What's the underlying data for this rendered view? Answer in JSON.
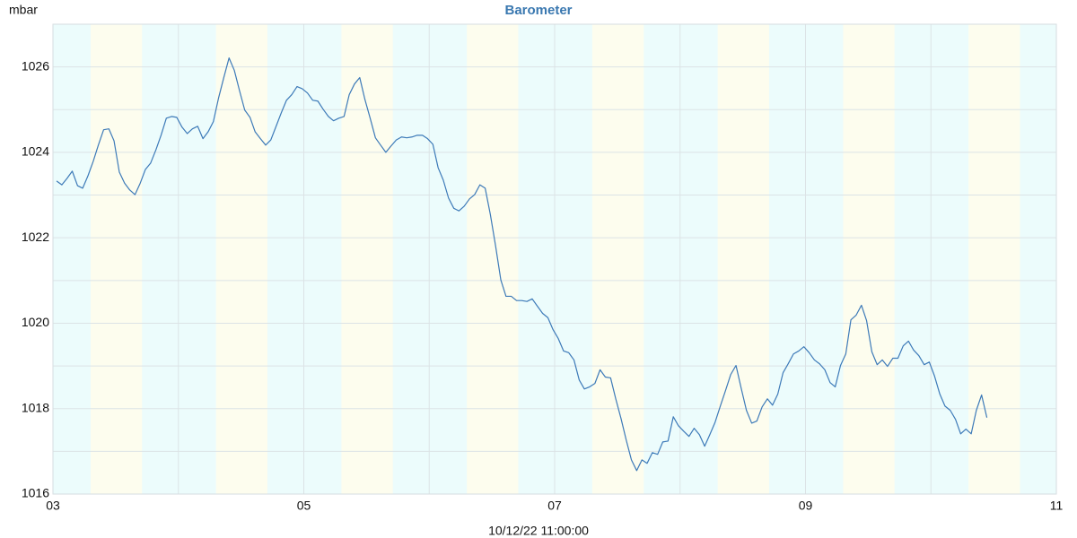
{
  "chart_data": {
    "type": "line",
    "title": "Barometer",
    "y_label": "mbar",
    "x_label": "10/12/22 11:00:00",
    "color": "#3d7ab8",
    "background": "#ecfcfc",
    "shading": {
      "color": "#fdfdee",
      "periods": [
        [
          3.3,
          3.71
        ],
        [
          4.3,
          4.71
        ],
        [
          5.3,
          5.71
        ],
        [
          6.3,
          6.71
        ],
        [
          7.3,
          7.71
        ],
        [
          8.3,
          8.71
        ],
        [
          9.3,
          9.71
        ],
        [
          10.3,
          10.71
        ]
      ]
    },
    "grid": true,
    "xlim": [
      3,
      11
    ],
    "ylim": [
      1016,
      1027
    ],
    "xticks": [
      {
        "value": 3,
        "label": "03"
      },
      {
        "value": 5,
        "label": "05"
      },
      {
        "value": 7,
        "label": "07"
      },
      {
        "value": 9,
        "label": "09"
      },
      {
        "value": 11,
        "label": "11"
      }
    ],
    "xminor": [
      4,
      6,
      8,
      10
    ],
    "yticks": [
      1016,
      1018,
      1020,
      1022,
      1024,
      1026
    ],
    "yminor": [
      1017,
      1019,
      1021,
      1023,
      1025
    ],
    "x": [
      3.029,
      3.071,
      3.112,
      3.154,
      3.196,
      3.237,
      3.279,
      3.321,
      3.362,
      3.404,
      3.446,
      3.487,
      3.529,
      3.571,
      3.612,
      3.654,
      3.696,
      3.737,
      3.779,
      3.821,
      3.862,
      3.904,
      3.946,
      3.987,
      4.029,
      4.071,
      4.112,
      4.154,
      4.196,
      4.237,
      4.279,
      4.321,
      4.362,
      4.404,
      4.446,
      4.487,
      4.529,
      4.571,
      4.612,
      4.654,
      4.696,
      4.737,
      4.779,
      4.821,
      4.862,
      4.904,
      4.946,
      4.987,
      5.029,
      5.071,
      5.112,
      5.154,
      5.196,
      5.237,
      5.279,
      5.321,
      5.362,
      5.404,
      5.446,
      5.487,
      5.529,
      5.571,
      5.612,
      5.654,
      5.696,
      5.737,
      5.779,
      5.821,
      5.862,
      5.904,
      5.946,
      5.987,
      6.029,
      6.071,
      6.112,
      6.154,
      6.196,
      6.237,
      6.279,
      6.321,
      6.362,
      6.404,
      6.446,
      6.487,
      6.529,
      6.571,
      6.612,
      6.654,
      6.696,
      6.737,
      6.779,
      6.821,
      6.862,
      6.904,
      6.946,
      6.987,
      7.029,
      7.071,
      7.112,
      7.154,
      7.196,
      7.237,
      7.279,
      7.321,
      7.362,
      7.404,
      7.446,
      7.487,
      7.529,
      7.571,
      7.612,
      7.654,
      7.696,
      7.737,
      7.779,
      7.821,
      7.862,
      7.904,
      7.946,
      7.987,
      8.029,
      8.071,
      8.112,
      8.154,
      8.196,
      8.237,
      8.279,
      8.321,
      8.362,
      8.404,
      8.446,
      8.487,
      8.529,
      8.571,
      8.612,
      8.654,
      8.696,
      8.737,
      8.779,
      8.821,
      8.862,
      8.904,
      8.946,
      8.987,
      9.029,
      9.071,
      9.112,
      9.154,
      9.196,
      9.237,
      9.279,
      9.321,
      9.362,
      9.404,
      9.446,
      9.487,
      9.529,
      9.571,
      9.612,
      9.654,
      9.696,
      9.737,
      9.779,
      9.821,
      9.862,
      9.904,
      9.946,
      9.987,
      10.029,
      10.071,
      10.112,
      10.154,
      10.196,
      10.237,
      10.279,
      10.321,
      10.362,
      10.404,
      10.446
    ],
    "values": [
      1023.33,
      1023.24,
      1023.39,
      1023.56,
      1023.22,
      1023.16,
      1023.45,
      1023.79,
      1024.17,
      1024.53,
      1024.55,
      1024.27,
      1023.54,
      1023.28,
      1023.12,
      1023.01,
      1023.28,
      1023.6,
      1023.75,
      1024.06,
      1024.4,
      1024.8,
      1024.84,
      1024.82,
      1024.59,
      1024.44,
      1024.55,
      1024.61,
      1024.32,
      1024.48,
      1024.72,
      1025.28,
      1025.75,
      1026.21,
      1025.92,
      1025.45,
      1024.99,
      1024.82,
      1024.48,
      1024.32,
      1024.17,
      1024.29,
      1024.61,
      1024.93,
      1025.22,
      1025.35,
      1025.54,
      1025.49,
      1025.39,
      1025.22,
      1025.2,
      1025.01,
      1024.84,
      1024.74,
      1024.8,
      1024.84,
      1025.35,
      1025.6,
      1025.75,
      1025.24,
      1024.8,
      1024.34,
      1024.17,
      1024,
      1024.15,
      1024.29,
      1024.36,
      1024.34,
      1024.36,
      1024.4,
      1024.4,
      1024.32,
      1024.19,
      1023.64,
      1023.35,
      1022.93,
      1022.69,
      1022.63,
      1022.74,
      1022.91,
      1023.01,
      1023.24,
      1023.16,
      1022.55,
      1021.81,
      1021.01,
      1020.63,
      1020.63,
      1020.53,
      1020.53,
      1020.51,
      1020.57,
      1020.4,
      1020.23,
      1020.13,
      1019.85,
      1019.64,
      1019.35,
      1019.31,
      1019.14,
      1018.67,
      1018.46,
      1018.51,
      1018.59,
      1018.91,
      1018.74,
      1018.72,
      1018.23,
      1017.77,
      1017.26,
      1016.8,
      1016.55,
      1016.8,
      1016.72,
      1016.97,
      1016.93,
      1017.22,
      1017.24,
      1017.81,
      1017.6,
      1017.47,
      1017.35,
      1017.54,
      1017.39,
      1017.12,
      1017.39,
      1017.68,
      1018.06,
      1018.42,
      1018.8,
      1019.01,
      1018.48,
      1017.96,
      1017.66,
      1017.71,
      1018.04,
      1018.23,
      1018.08,
      1018.34,
      1018.84,
      1019.05,
      1019.28,
      1019.35,
      1019.45,
      1019.31,
      1019.14,
      1019.05,
      1018.91,
      1018.61,
      1018.51,
      1019.01,
      1019.28,
      1020.08,
      1020.19,
      1020.42,
      1020.06,
      1019.33,
      1019.03,
      1019.14,
      1018.99,
      1019.18,
      1019.18,
      1019.47,
      1019.58,
      1019.37,
      1019.24,
      1019.03,
      1019.09,
      1018.76,
      1018.34,
      1018.06,
      1017.96,
      1017.75,
      1017.41,
      1017.52,
      1017.41,
      1017.96,
      1018.32,
      1017.79
    ]
  }
}
